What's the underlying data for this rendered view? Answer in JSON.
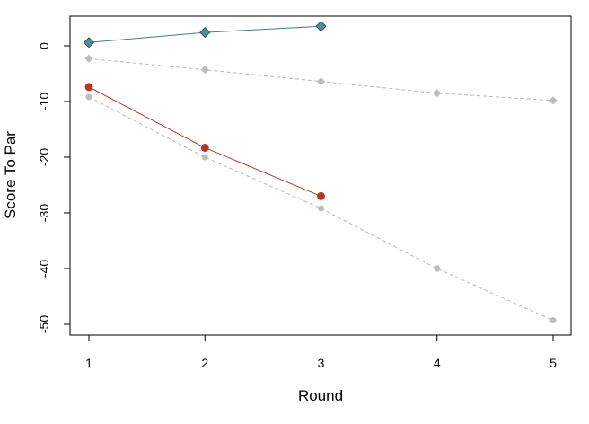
{
  "chart_data": {
    "type": "line",
    "title": "",
    "xlabel": "Round",
    "ylabel": "Score To Par",
    "xlim": [
      1,
      5
    ],
    "ylim": [
      -50,
      3.5
    ],
    "x_ticks": [
      1,
      2,
      3,
      4,
      5
    ],
    "y_ticks": [
      0,
      -10,
      -20,
      -30,
      -40,
      -50
    ],
    "grid": false,
    "legend": "none",
    "series": [
      {
        "x": [
          1,
          2,
          3
        ],
        "values": [
          0.6,
          2.4,
          3.5
        ],
        "marker": "diamond",
        "line_style": "solid",
        "line_color": "#3d7f84",
        "marker_color": "#4d8e93"
      },
      {
        "x": [
          1,
          2,
          3,
          4,
          5
        ],
        "values": [
          -2.3,
          -4.3,
          -6.4,
          -8.5,
          -9.8
        ],
        "marker": "diamond",
        "line_style": "dashed",
        "line_color": "#b8b8b8",
        "marker_color": "#bdbdbd"
      },
      {
        "x": [
          1,
          2,
          3
        ],
        "values": [
          -7.4,
          -18.3,
          -27.0
        ],
        "marker": "circle",
        "line_style": "solid",
        "line_color": "#b03a2e",
        "marker_color": "#c0302a"
      },
      {
        "x": [
          1,
          2,
          3,
          4,
          5
        ],
        "values": [
          -9.2,
          -20.0,
          -29.2,
          -40.0,
          -49.3
        ],
        "marker": "circle",
        "line_style": "dashed",
        "line_color": "#b8b8b8",
        "marker_color": "#bdbdbd"
      }
    ]
  }
}
